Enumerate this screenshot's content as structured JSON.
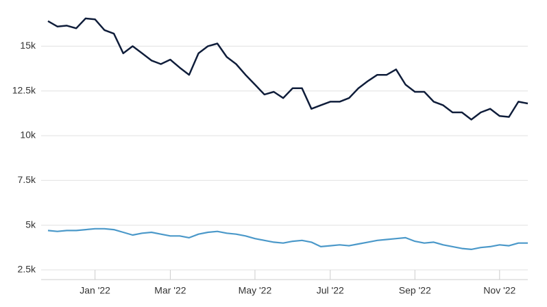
{
  "chart_data": {
    "type": "line",
    "categories": [
      null,
      null,
      null,
      null,
      null,
      "Jan '22",
      null,
      null,
      null,
      null,
      null,
      null,
      null,
      "Mar '22",
      null,
      null,
      null,
      null,
      null,
      null,
      null,
      null,
      "May '22",
      null,
      null,
      null,
      null,
      null,
      null,
      null,
      "Jul '22",
      null,
      null,
      null,
      null,
      null,
      null,
      null,
      null,
      "Sep '22",
      null,
      null,
      null,
      null,
      null,
      null,
      null,
      null,
      "Nov '22",
      null,
      null,
      null
    ],
    "series": [
      {
        "color": "#0f1d3a",
        "values": [
          16400,
          16100,
          16150,
          16000,
          16550,
          16500,
          15900,
          15700,
          14600,
          15000,
          14600,
          14200,
          14000,
          14250,
          13800,
          13400,
          14600,
          15000,
          15150,
          14400,
          14000,
          13400,
          12850,
          12300,
          12450,
          12100,
          12650,
          12650,
          11500,
          11700,
          11900,
          11900,
          12100,
          12650,
          13050,
          13400,
          13400,
          13700,
          12850,
          12450,
          12450,
          11900,
          11700,
          11300,
          11300,
          10900,
          11300,
          11500,
          11100,
          11050,
          11900,
          11800
        ]
      },
      {
        "color": "#4a98c9",
        "values": [
          4700,
          4650,
          4700,
          4700,
          4750,
          4800,
          4800,
          4750,
          4600,
          4450,
          4550,
          4600,
          4500,
          4400,
          4400,
          4300,
          4500,
          4600,
          4650,
          4550,
          4500,
          4400,
          4250,
          4150,
          4050,
          4000,
          4100,
          4150,
          4050,
          3800,
          3850,
          3900,
          3850,
          3950,
          4050,
          4150,
          4200,
          4250,
          4300,
          4100,
          4000,
          4050,
          3900,
          3800,
          3700,
          3650,
          3750,
          3800,
          3900,
          3850,
          4000,
          4000
        ]
      }
    ],
    "ylim": [
      1960,
      17580
    ],
    "yticks": [
      {
        "value": 2500,
        "label": "2.5k"
      },
      {
        "value": 5000,
        "label": "5k"
      },
      {
        "value": 7500,
        "label": "7.5k"
      },
      {
        "value": 10000,
        "label": "10k"
      },
      {
        "value": 12500,
        "label": "12.5k"
      },
      {
        "value": 15000,
        "label": "15k"
      }
    ],
    "grid": true
  }
}
